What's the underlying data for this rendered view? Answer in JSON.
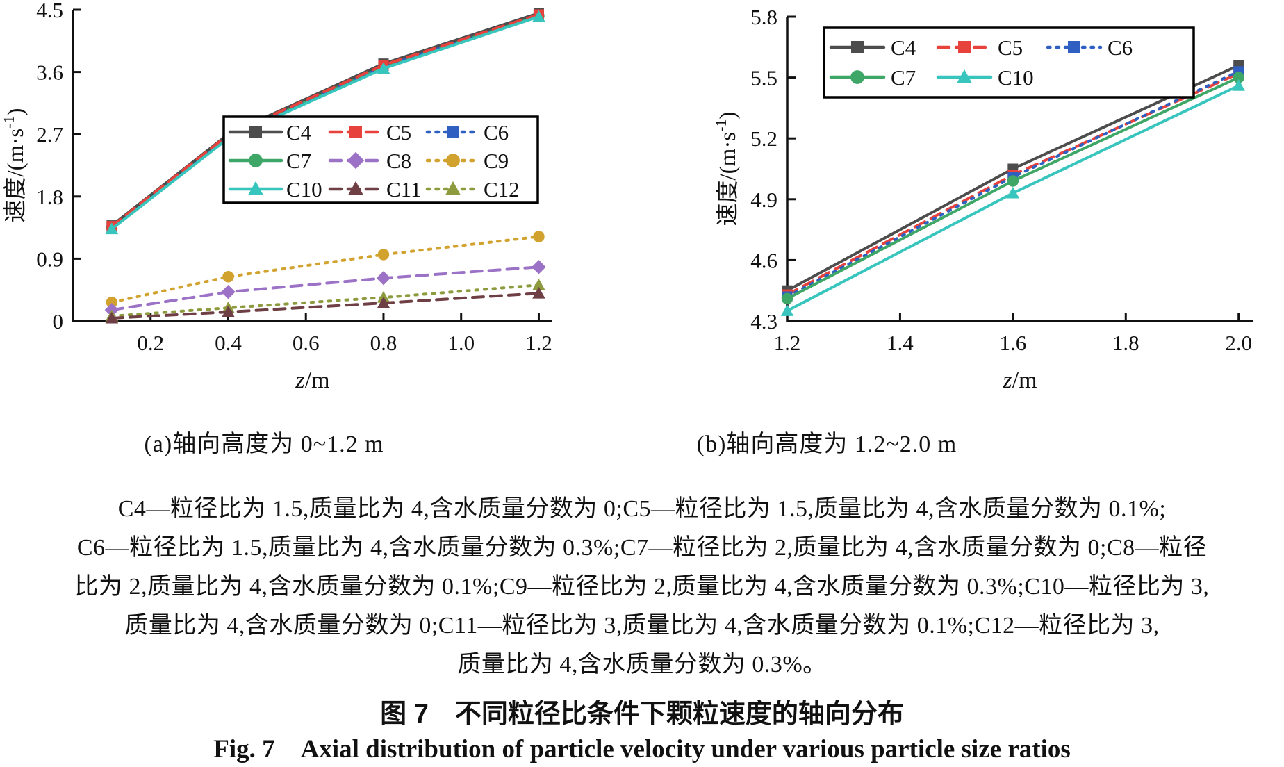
{
  "caption": {
    "lines": [
      "C4—粒径比为 1.5,质量比为 4,含水质量分数为 0;C5—粒径比为 1.5,质量比为 4,含水质量分数为 0.1%;",
      "C6—粒径比为 1.5,质量比为 4,含水质量分数为 0.3%;C7—粒径比为 2,质量比为 4,含水质量分数为 0;C8—粒径",
      "比为 2,质量比为 4,含水质量分数为 0.1%;C9—粒径比为 2,质量比为 4,含水质量分数为 0.3%;C10—粒径比为 3,",
      "质量比为 4,含水质量分数为 0;C11—粒径比为 3,质量比为 4,含水质量分数为 0.1%;C12—粒径比为 3,",
      "质量比为 4,含水质量分数为 0.3%。"
    ],
    "title_zh": "图 7　不同粒径比条件下颗粒速度的轴向分布",
    "title_en": "Fig. 7　Axial distribution of particle velocity under various particle size ratios"
  },
  "chart_data": [
    {
      "type": "line",
      "title": "(a)轴向高度为 0~1.2 m",
      "xlabel": "z/m",
      "ylabel": "速度/(m·s⁻¹)",
      "grid": false,
      "legend_position": "center-right",
      "xlim": [
        0,
        1.235
      ],
      "ylim": [
        0,
        4.5
      ],
      "x_ticks": [
        0.2,
        0.4,
        0.6,
        0.8,
        1.0,
        1.2
      ],
      "x_tick_labels": [
        "0.2",
        "0.4",
        "0.6",
        "0.8",
        "1.0",
        "1.2"
      ],
      "y_ticks": [
        0,
        0.9,
        1.8,
        2.7,
        3.6,
        4.5
      ],
      "y_tick_labels": [
        "0",
        "0.9",
        "1.8",
        "2.7",
        "3.6",
        "4.5"
      ],
      "x": [
        0.1,
        0.4,
        0.8,
        1.2
      ],
      "series": [
        {
          "name": "C9",
          "color": "#d2a22e",
          "line": "dotted",
          "marker": "circle",
          "values": [
            0.27,
            0.64,
            0.96,
            1.22
          ]
        },
        {
          "name": "C8",
          "color": "#9c72c6",
          "line": "dashed",
          "marker": "diamond",
          "values": [
            0.16,
            0.42,
            0.62,
            0.78
          ]
        },
        {
          "name": "C12",
          "color": "#8e9a3e",
          "line": "dotted",
          "marker": "triangle",
          "values": [
            0.07,
            0.19,
            0.34,
            0.52
          ]
        },
        {
          "name": "C11",
          "color": "#6e3f44",
          "line": "dashed",
          "marker": "triangle",
          "values": [
            0.04,
            0.13,
            0.26,
            0.4
          ]
        },
        {
          "name": "C7",
          "color": "#3ea768",
          "line": "solid",
          "marker": "circle",
          "values": [
            1.35,
            2.67,
            3.68,
            4.41
          ]
        },
        {
          "name": "C6",
          "color": "#2f5fc0",
          "line": "dotted",
          "marker": "square",
          "values": [
            1.36,
            2.68,
            3.69,
            4.42
          ]
        },
        {
          "name": "C4",
          "color": "#4d4d4d",
          "line": "solid",
          "marker": "square",
          "values": [
            1.38,
            2.7,
            3.72,
            4.45
          ]
        },
        {
          "name": "C5",
          "color": "#e8423d",
          "line": "dashed",
          "marker": "square",
          "values": [
            1.37,
            2.69,
            3.7,
            4.43
          ]
        },
        {
          "name": "C10",
          "color": "#38c5bd",
          "line": "solid",
          "marker": "triangle",
          "values": [
            1.33,
            2.64,
            3.65,
            4.4
          ]
        }
      ],
      "legend_rows": [
        [
          "C4",
          "C5",
          "C6"
        ],
        [
          "C7",
          "C8",
          "C9"
        ],
        [
          "C10",
          "C11",
          "C12"
        ]
      ]
    },
    {
      "type": "line",
      "title": "(b)轴向高度为 1.2~2.0 m",
      "xlabel": "z/m",
      "ylabel": "速度/(m·s⁻¹)",
      "grid": false,
      "legend_position": "top-left",
      "xlim": [
        1.2,
        2.025
      ],
      "ylim": [
        4.3,
        5.8
      ],
      "x_ticks": [
        1.2,
        1.4,
        1.6,
        1.8,
        2.0
      ],
      "x_tick_labels": [
        "1.2",
        "1.4",
        "1.6",
        "1.8",
        "2.0"
      ],
      "y_ticks": [
        4.3,
        4.6,
        4.9,
        5.2,
        5.5,
        5.8
      ],
      "y_tick_labels": [
        "4.3",
        "4.6",
        "4.9",
        "5.2",
        "5.5",
        "5.8"
      ],
      "x": [
        1.2,
        1.6,
        2.0
      ],
      "series": [
        {
          "name": "C4",
          "color": "#4d4d4d",
          "line": "solid",
          "marker": "square",
          "values": [
            4.45,
            5.05,
            5.56
          ]
        },
        {
          "name": "C5",
          "color": "#e8423d",
          "line": "dashed",
          "marker": "square",
          "values": [
            4.43,
            5.02,
            5.52
          ]
        },
        {
          "name": "C6",
          "color": "#2f5fc0",
          "line": "dotted",
          "marker": "square",
          "values": [
            4.42,
            5.01,
            5.53
          ]
        },
        {
          "name": "C7",
          "color": "#3ea768",
          "line": "solid",
          "marker": "circle",
          "values": [
            4.41,
            4.99,
            5.5
          ]
        },
        {
          "name": "C10",
          "color": "#38c5bd",
          "line": "solid",
          "marker": "triangle",
          "values": [
            4.35,
            4.93,
            5.46
          ]
        }
      ],
      "legend_rows": [
        [
          "C4",
          "C5",
          "C6"
        ],
        [
          "C7",
          "C10"
        ]
      ]
    }
  ]
}
